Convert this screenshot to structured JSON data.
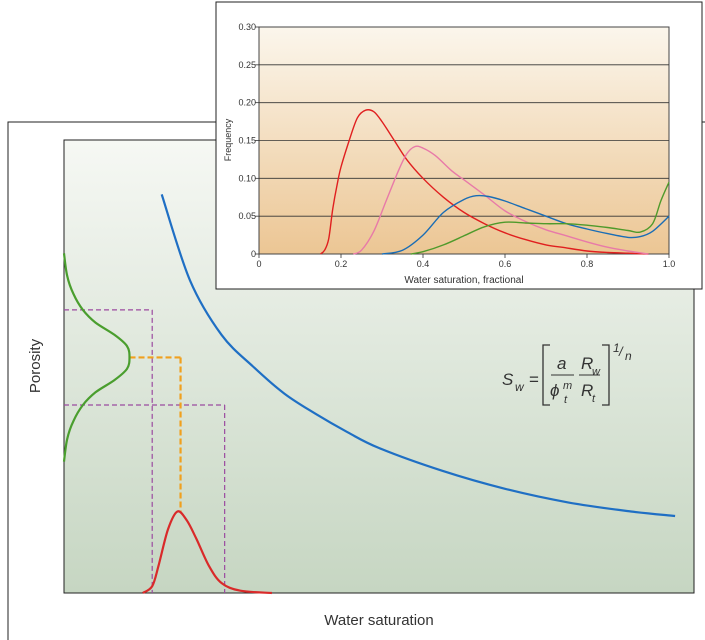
{
  "chart_data": [
    {
      "type": "line",
      "title": "",
      "xlabel": "Water saturation",
      "ylabel": "Porosity",
      "tick_labels": false,
      "formula": {
        "lhs": "S",
        "lhs_sub": "w",
        "equals": "=",
        "a": "a",
        "phi": "ϕ",
        "phi_sup": "m",
        "phi_sub": "t",
        "R": "R",
        "rw_sub": "w",
        "rt_sub": "t",
        "exp_num": "1",
        "exp_slash": "/",
        "exp_den": "n"
      },
      "series": [
        {
          "id": "sw-vs-porosity-curve",
          "color": "#1f6fc4",
          "points": [
            [
              0.155,
              0.88
            ],
            [
              0.2,
              0.69
            ],
            [
              0.25,
              0.57
            ],
            [
              0.3,
              0.5
            ],
            [
              0.35,
              0.44
            ],
            [
              0.4,
              0.395
            ],
            [
              0.45,
              0.355
            ],
            [
              0.5,
              0.32
            ],
            [
              0.6,
              0.27
            ],
            [
              0.7,
              0.23
            ],
            [
              0.8,
              0.2
            ],
            [
              0.9,
              0.18
            ],
            [
              0.97,
              0.17
            ]
          ]
        },
        {
          "id": "porosity-distribution",
          "color": "#4a9e2e",
          "points": [
            [
              0.0,
              0.75
            ],
            [
              0.005,
              0.7
            ],
            [
              0.015,
              0.66
            ],
            [
              0.03,
              0.625
            ],
            [
              0.05,
              0.597
            ],
            [
              0.08,
              0.57
            ],
            [
              0.1,
              0.545
            ],
            [
              0.104,
              0.52
            ],
            [
              0.1,
              0.495
            ],
            [
              0.08,
              0.47
            ],
            [
              0.05,
              0.443
            ],
            [
              0.03,
              0.415
            ],
            [
              0.015,
              0.38
            ],
            [
              0.005,
              0.34
            ],
            [
              0.0,
              0.29
            ]
          ]
        },
        {
          "id": "water-saturation-distribution",
          "color": "#d92a2a",
          "points": [
            [
              0.125,
              0.0
            ],
            [
              0.14,
              0.015
            ],
            [
              0.15,
              0.06
            ],
            [
              0.165,
              0.14
            ],
            [
              0.18,
              0.18
            ],
            [
              0.195,
              0.16
            ],
            [
              0.21,
              0.12
            ],
            [
              0.23,
              0.06
            ],
            [
              0.25,
              0.022
            ],
            [
              0.28,
              0.005
            ],
            [
              0.33,
              0.0
            ]
          ]
        }
      ],
      "reference_lines": {
        "porosity_mode": 0.52,
        "porosity_low": 0.625,
        "porosity_high": 0.415,
        "sw_mode": 0.185,
        "sw_low": 0.14,
        "sw_high": 0.255
      }
    },
    {
      "type": "line",
      "title": "",
      "xlabel": "Water saturation, fractional",
      "ylabel": "Frequency",
      "xlim": [
        0,
        1.0
      ],
      "ylim": [
        0,
        0.3
      ],
      "x_ticks": [
        "0",
        "0.2",
        "0.4",
        "0.6",
        "0.8",
        "1.0"
      ],
      "y_ticks": [
        "0",
        "0.05",
        "0.10",
        "0.15",
        "0.20",
        "0.25",
        "0.30"
      ],
      "grid": "horizontal",
      "series": [
        {
          "color": "#e01f1f",
          "points": [
            [
              0.15,
              0.0
            ],
            [
              0.16,
              0.005
            ],
            [
              0.17,
              0.02
            ],
            [
              0.18,
              0.06
            ],
            [
              0.19,
              0.09
            ],
            [
              0.2,
              0.115
            ],
            [
              0.22,
              0.15
            ],
            [
              0.24,
              0.18
            ],
            [
              0.26,
              0.19
            ],
            [
              0.28,
              0.188
            ],
            [
              0.3,
              0.175
            ],
            [
              0.33,
              0.15
            ],
            [
              0.36,
              0.125
            ],
            [
              0.4,
              0.1
            ],
            [
              0.45,
              0.075
            ],
            [
              0.5,
              0.055
            ],
            [
              0.55,
              0.04
            ],
            [
              0.6,
              0.028
            ],
            [
              0.65,
              0.019
            ],
            [
              0.7,
              0.012
            ],
            [
              0.75,
              0.008
            ],
            [
              0.8,
              0.004
            ],
            [
              0.85,
              0.002
            ],
            [
              0.9,
              0.001
            ],
            [
              0.95,
              0.0
            ]
          ]
        },
        {
          "color": "#e87aa8",
          "points": [
            [
              0.23,
              0.0
            ],
            [
              0.25,
              0.005
            ],
            [
              0.28,
              0.03
            ],
            [
              0.31,
              0.07
            ],
            [
              0.34,
              0.11
            ],
            [
              0.36,
              0.132
            ],
            [
              0.38,
              0.142
            ],
            [
              0.4,
              0.14
            ],
            [
              0.43,
              0.13
            ],
            [
              0.47,
              0.11
            ],
            [
              0.5,
              0.098
            ],
            [
              0.55,
              0.078
            ],
            [
              0.6,
              0.057
            ],
            [
              0.65,
              0.043
            ],
            [
              0.7,
              0.032
            ],
            [
              0.75,
              0.024
            ],
            [
              0.8,
              0.016
            ],
            [
              0.85,
              0.009
            ],
            [
              0.9,
              0.004
            ],
            [
              0.95,
              0.0
            ]
          ]
        },
        {
          "color": "#1a6db5",
          "points": [
            [
              0.3,
              0.0
            ],
            [
              0.35,
              0.005
            ],
            [
              0.4,
              0.025
            ],
            [
              0.45,
              0.055
            ],
            [
              0.5,
              0.072
            ],
            [
              0.53,
              0.077
            ],
            [
              0.56,
              0.076
            ],
            [
              0.6,
              0.07
            ],
            [
              0.65,
              0.06
            ],
            [
              0.7,
              0.05
            ],
            [
              0.75,
              0.04
            ],
            [
              0.8,
              0.033
            ],
            [
              0.85,
              0.027
            ],
            [
              0.9,
              0.022
            ],
            [
              0.93,
              0.023
            ],
            [
              0.96,
              0.03
            ],
            [
              1.0,
              0.05
            ]
          ]
        },
        {
          "color": "#4f9a2b",
          "points": [
            [
              0.37,
              0.0
            ],
            [
              0.4,
              0.003
            ],
            [
              0.45,
              0.012
            ],
            [
              0.5,
              0.024
            ],
            [
              0.55,
              0.036
            ],
            [
              0.6,
              0.042
            ],
            [
              0.65,
              0.041
            ],
            [
              0.7,
              0.04
            ],
            [
              0.75,
              0.04
            ],
            [
              0.8,
              0.038
            ],
            [
              0.85,
              0.035
            ],
            [
              0.9,
              0.031
            ],
            [
              0.93,
              0.029
            ],
            [
              0.96,
              0.04
            ],
            [
              0.98,
              0.07
            ],
            [
              1.0,
              0.095
            ]
          ]
        }
      ]
    }
  ]
}
